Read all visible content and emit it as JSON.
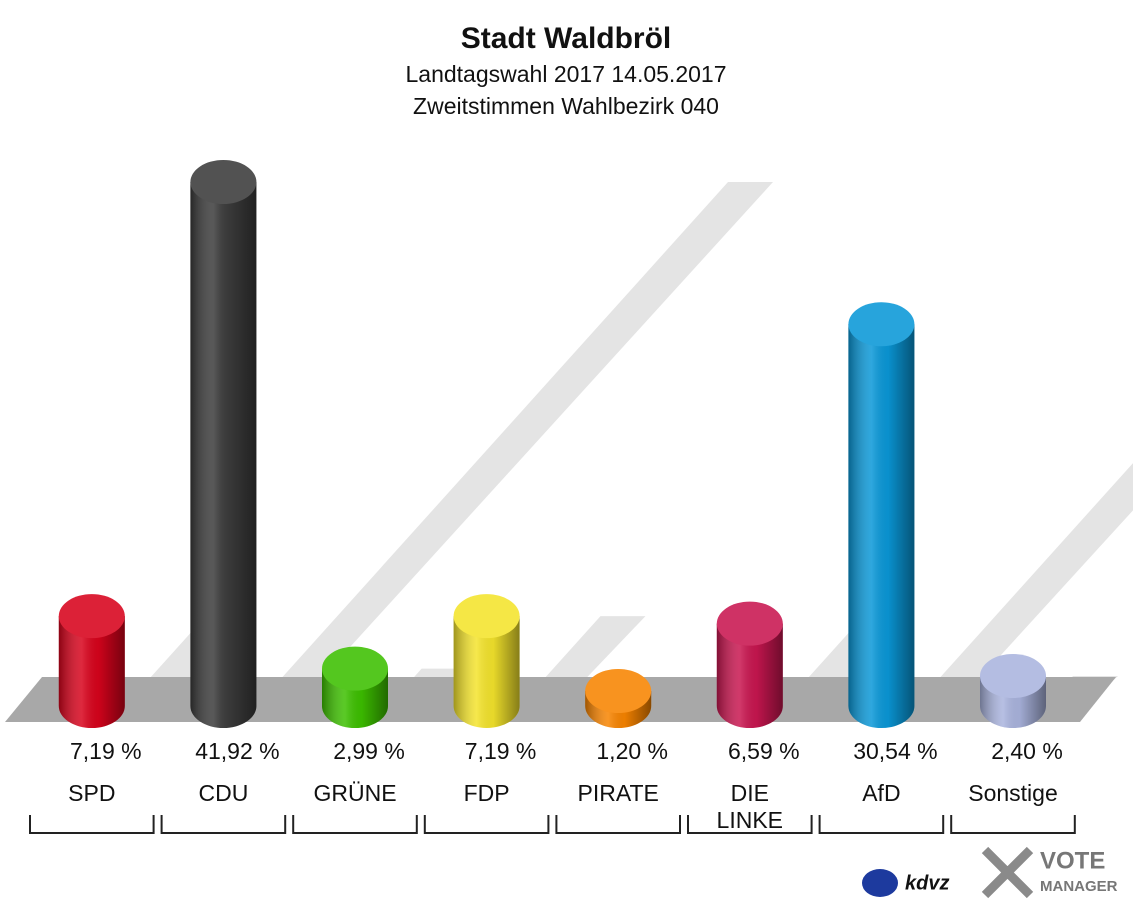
{
  "chart_data": {
    "type": "bar",
    "title": "Stadt Waldbröl",
    "subtitle": [
      "Landtagswahl 2017 14.05.2017",
      "Zweitstimmen Wahlbezirk 040"
    ],
    "categories": [
      "SPD",
      "CDU",
      "GRÜNE",
      "FDP",
      "PIRATE",
      "DIE LINKE",
      "AfD",
      "Sonstige"
    ],
    "values": [
      7.19,
      41.92,
      2.99,
      7.19,
      1.2,
      6.59,
      30.54,
      2.4
    ],
    "value_labels": [
      "7,19 %",
      "41,92 %",
      "2,99 %",
      "7,19 %",
      "1,20 %",
      "6,59 %",
      "30,54 %",
      "2,40 %"
    ],
    "colors": [
      "#d8031c",
      "#3b3b3b",
      "#3dc000",
      "#f4e42c",
      "#f88400",
      "#c91650",
      "#0a98d8",
      "#aab4de"
    ]
  },
  "logos": [
    "kdvz",
    "VOTE",
    "MANAGER"
  ]
}
